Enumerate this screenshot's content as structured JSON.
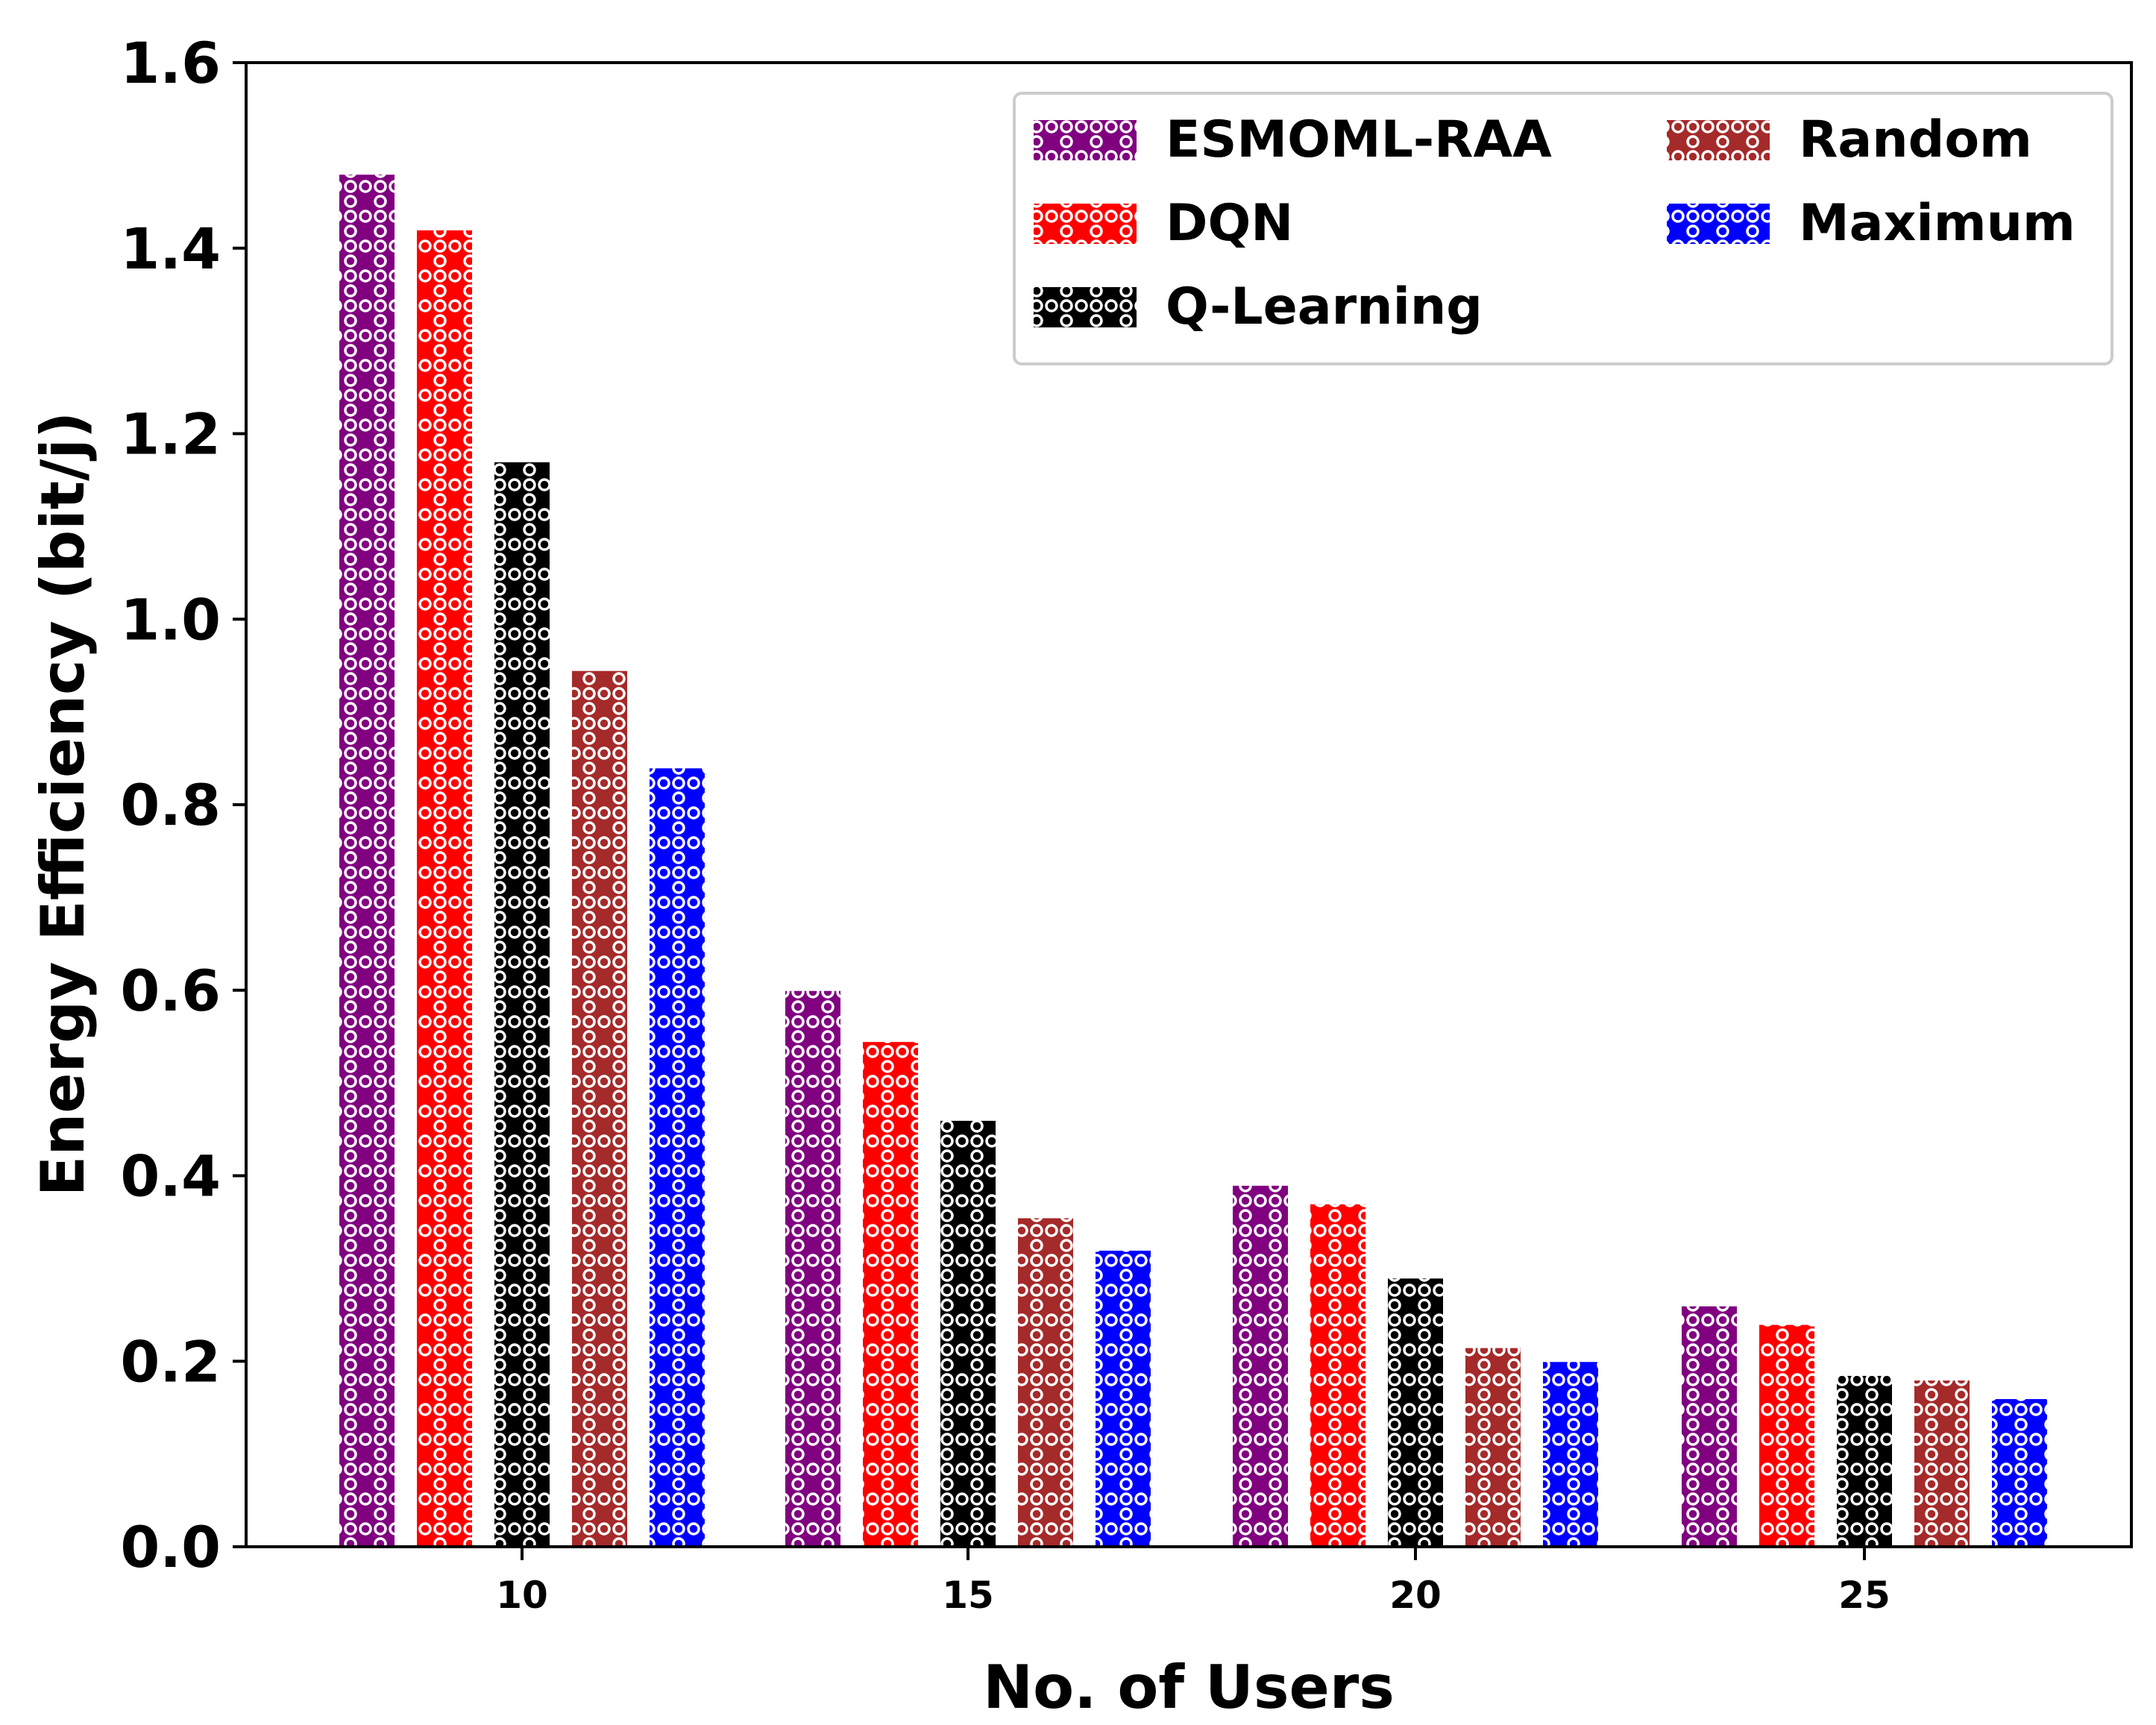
{
  "chart_data": {
    "type": "bar",
    "title": "",
    "xlabel": "No. of Users",
    "ylabel": "Energy Efficiency (bit/j)",
    "categories": [
      "10",
      "15",
      "20",
      "25"
    ],
    "ylim": [
      0.0,
      1.6
    ],
    "yticks": [
      "0.0",
      "0.2",
      "0.4",
      "0.6",
      "0.8",
      "1.0",
      "1.2",
      "1.4",
      "1.6"
    ],
    "grid": false,
    "legend_position": "top-right",
    "series": [
      {
        "name": "ESMOML-RAA",
        "color": "#800080",
        "values": [
          1.48,
          0.6,
          0.39,
          0.26
        ]
      },
      {
        "name": "DQN",
        "color": "#ff0000",
        "values": [
          1.42,
          0.545,
          0.37,
          0.24
        ]
      },
      {
        "name": "Q-Learning",
        "color": "#000000",
        "values": [
          1.17,
          0.46,
          0.29,
          0.185
        ]
      },
      {
        "name": "Random",
        "color": "#a52a2a",
        "values": [
          0.945,
          0.355,
          0.215,
          0.18
        ]
      },
      {
        "name": "Maximum",
        "color": "#0000ff",
        "values": [
          0.84,
          0.32,
          0.2,
          0.16
        ]
      }
    ]
  }
}
